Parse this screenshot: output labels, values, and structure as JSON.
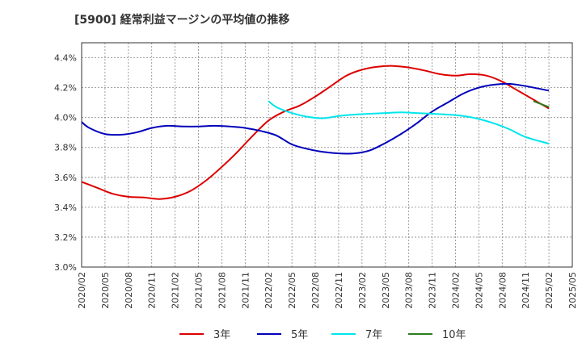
{
  "chart_data": {
    "type": "line",
    "title": "[5900]  経常利益マージンの平均値の推移",
    "ylim": [
      3.0,
      4.5
    ],
    "y_ticks": [
      3.0,
      3.2,
      3.4,
      3.6,
      3.8,
      4.0,
      4.2,
      4.4
    ],
    "y_tick_labels": [
      "3.0%",
      "3.2%",
      "3.4%",
      "3.6%",
      "3.8%",
      "4.0%",
      "4.2%",
      "4.4%"
    ],
    "x_tick_labels": [
      "2020/02",
      "2020/05",
      "2020/08",
      "2020/11",
      "2021/02",
      "2021/05",
      "2021/08",
      "2021/11",
      "2022/02",
      "2022/05",
      "2022/08",
      "2022/11",
      "2023/02",
      "2023/05",
      "2023/08",
      "2023/11",
      "2024/02",
      "2024/05",
      "2024/08",
      "2024/11",
      "2025/02",
      "2025/05"
    ],
    "grid": true,
    "legend_position": "bottom",
    "series": [
      {
        "name": "3年",
        "color": "#dd0000",
        "points": [
          [
            "2020/02",
            3.57
          ],
          [
            "2020/04",
            3.53
          ],
          [
            "2020/06",
            3.49
          ],
          [
            "2020/08",
            3.47
          ],
          [
            "2020/10",
            3.465
          ],
          [
            "2020/12",
            3.455
          ],
          [
            "2021/02",
            3.47
          ],
          [
            "2021/04",
            3.51
          ],
          [
            "2021/06",
            3.58
          ],
          [
            "2021/08",
            3.67
          ],
          [
            "2021/10",
            3.77
          ],
          [
            "2021/12",
            3.88
          ],
          [
            "2022/02",
            3.98
          ],
          [
            "2022/04",
            4.04
          ],
          [
            "2022/06",
            4.08
          ],
          [
            "2022/08",
            4.14
          ],
          [
            "2022/10",
            4.21
          ],
          [
            "2022/12",
            4.28
          ],
          [
            "2023/02",
            4.32
          ],
          [
            "2023/04",
            4.34
          ],
          [
            "2023/06",
            4.345
          ],
          [
            "2023/08",
            4.335
          ],
          [
            "2023/10",
            4.315
          ],
          [
            "2023/12",
            4.29
          ],
          [
            "2024/02",
            4.28
          ],
          [
            "2024/04",
            4.29
          ],
          [
            "2024/06",
            4.28
          ],
          [
            "2024/08",
            4.24
          ],
          [
            "2024/10",
            4.18
          ],
          [
            "2024/12",
            4.12
          ],
          [
            "2025/02",
            4.06
          ]
        ]
      },
      {
        "name": "5年",
        "color": "#0000bb",
        "points": [
          [
            "2020/02",
            3.97
          ],
          [
            "2020/03",
            3.93
          ],
          [
            "2020/05",
            3.89
          ],
          [
            "2020/07",
            3.885
          ],
          [
            "2020/09",
            3.9
          ],
          [
            "2020/11",
            3.93
          ],
          [
            "2021/01",
            3.945
          ],
          [
            "2021/03",
            3.94
          ],
          [
            "2021/05",
            3.94
          ],
          [
            "2021/07",
            3.945
          ],
          [
            "2021/09",
            3.94
          ],
          [
            "2021/11",
            3.93
          ],
          [
            "2022/01",
            3.91
          ],
          [
            "2022/03",
            3.88
          ],
          [
            "2022/05",
            3.82
          ],
          [
            "2022/07",
            3.79
          ],
          [
            "2022/09",
            3.77
          ],
          [
            "2022/11",
            3.76
          ],
          [
            "2023/01",
            3.76
          ],
          [
            "2023/03",
            3.78
          ],
          [
            "2023/05",
            3.83
          ],
          [
            "2023/07",
            3.89
          ],
          [
            "2023/09",
            3.96
          ],
          [
            "2023/11",
            4.04
          ],
          [
            "2024/01",
            4.1
          ],
          [
            "2024/03",
            4.16
          ],
          [
            "2024/05",
            4.2
          ],
          [
            "2024/07",
            4.22
          ],
          [
            "2024/09",
            4.225
          ],
          [
            "2024/11",
            4.21
          ],
          [
            "2025/02",
            4.18
          ]
        ]
      },
      {
        "name": "7年",
        "color": "#00e5ee",
        "points": [
          [
            "2022/02",
            4.11
          ],
          [
            "2022/03",
            4.07
          ],
          [
            "2022/05",
            4.03
          ],
          [
            "2022/07",
            4.005
          ],
          [
            "2022/09",
            3.995
          ],
          [
            "2022/11",
            4.01
          ],
          [
            "2023/01",
            4.02
          ],
          [
            "2023/03",
            4.025
          ],
          [
            "2023/05",
            4.03
          ],
          [
            "2023/07",
            4.035
          ],
          [
            "2023/09",
            4.03
          ],
          [
            "2023/11",
            4.025
          ],
          [
            "2024/01",
            4.02
          ],
          [
            "2024/03",
            4.01
          ],
          [
            "2024/05",
            3.99
          ],
          [
            "2024/07",
            3.96
          ],
          [
            "2024/09",
            3.92
          ],
          [
            "2024/11",
            3.87
          ],
          [
            "2025/02",
            3.825
          ]
        ]
      },
      {
        "name": "10年",
        "color": "#2e7d1f",
        "points": [
          [
            "2024/12",
            4.11
          ],
          [
            "2025/02",
            4.07
          ]
        ]
      }
    ]
  }
}
